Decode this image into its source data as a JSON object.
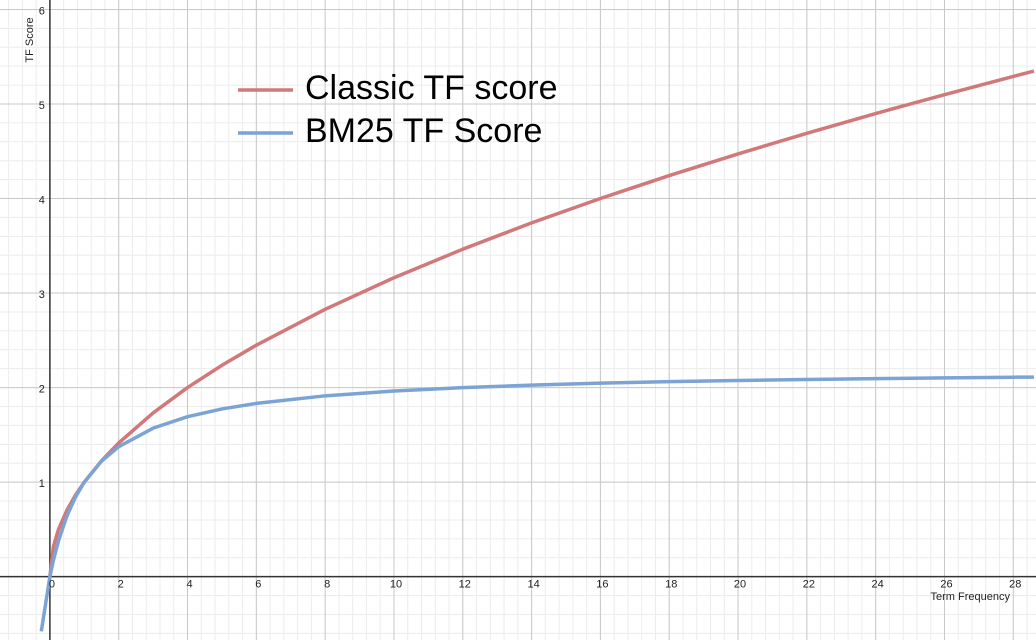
{
  "chart_data": {
    "type": "line",
    "x_label": "Term Frequency",
    "y_label": "TF Score",
    "x": [
      -0.25,
      0,
      0.1,
      0.25,
      0.5,
      0.75,
      1,
      1.5,
      2,
      3,
      4,
      5,
      6,
      8,
      10,
      12,
      14,
      16,
      18,
      20,
      22,
      24,
      26,
      28,
      28.6
    ],
    "series": [
      {
        "name": "Classic TF score",
        "color": "#d0787a",
        "values": [
          null,
          0,
          0.316,
          0.5,
          0.707,
          0.866,
          1,
          1.225,
          1.414,
          1.732,
          2,
          2.236,
          2.449,
          2.828,
          3.162,
          3.464,
          3.742,
          4,
          4.243,
          4.472,
          4.69,
          4.899,
          5.099,
          5.292,
          5.348
        ]
      },
      {
        "name": "BM25 TF Score",
        "color": "#7ba3d4",
        "values": [
          -0.579,
          0,
          0.169,
          0.379,
          0.647,
          0.846,
          1,
          1.222,
          1.375,
          1.571,
          1.692,
          1.774,
          1.833,
          1.913,
          1.964,
          2,
          2.026,
          2.047,
          2.063,
          2.075,
          2.086,
          2.095,
          2.103,
          2.11,
          2.111
        ]
      }
    ],
    "xlim": [
      -1.45,
      28.66
    ],
    "ylim": [
      -0.67,
      6.1
    ],
    "xticks": [
      0,
      2,
      4,
      6,
      8,
      10,
      12,
      14,
      16,
      18,
      20,
      22,
      24,
      26,
      28
    ],
    "yticks": [
      0,
      1,
      2,
      3,
      4,
      5,
      6
    ],
    "grid": true
  }
}
